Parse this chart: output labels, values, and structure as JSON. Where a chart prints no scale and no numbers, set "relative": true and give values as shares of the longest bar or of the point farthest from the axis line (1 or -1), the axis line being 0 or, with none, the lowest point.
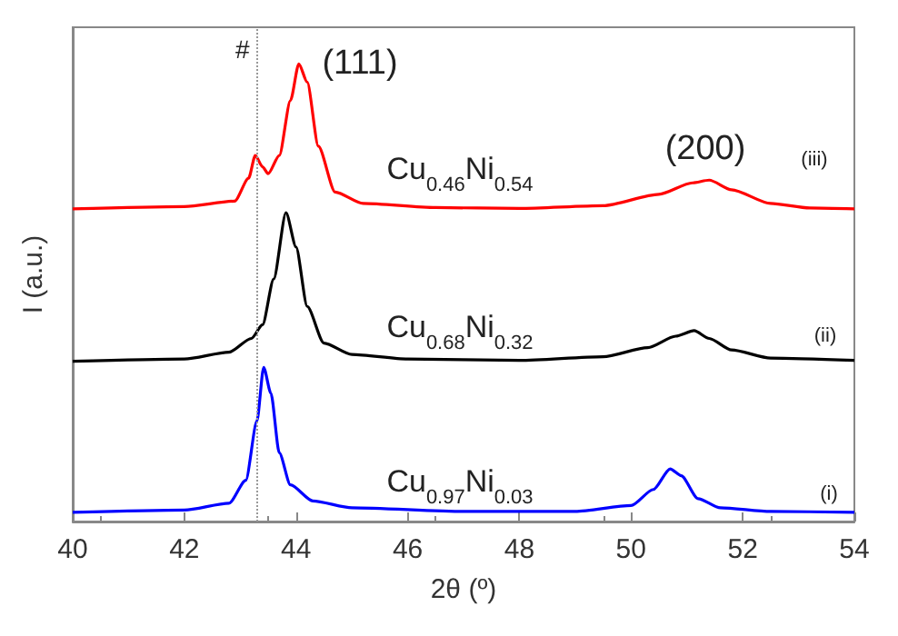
{
  "chart_data": {
    "type": "line",
    "relative": true,
    "xlabel": "2θ (º)",
    "ylabel": "I (a.u.)",
    "xlim": [
      40,
      54
    ],
    "xticks": [
      40,
      42,
      44,
      46,
      48,
      50,
      52,
      54
    ],
    "tick_labels": "x",
    "grid": false,
    "marker": "none",
    "line_style": "solid",
    "ref_lines": [
      {
        "axis": "x",
        "value": 43.3,
        "label": "#",
        "color": "#999999",
        "line_style": "dotted"
      }
    ],
    "annotations": [
      "(111)",
      "(200)",
      "Cu$_{0.46}$Ni$_{0.54}$",
      "Cu$_{0.68}$Ni$_{0.32}$",
      "Cu$_{0.97}$Ni$_{0.03}$",
      "(iii)",
      "(ii)",
      "(i)"
    ],
    "series": [
      {
        "color": "#0000ff",
        "x": [
          40,
          42,
          42.8,
          43.1,
          43.3,
          43.42,
          43.55,
          43.7,
          43.9,
          44.3,
          45,
          47,
          49,
          50,
          50.4,
          50.7,
          50.9,
          51.2,
          51.6,
          52.5,
          54
        ],
        "values": [
          0.02,
          0.025,
          0.04,
          0.09,
          0.22,
          0.337,
          0.28,
          0.15,
          0.08,
          0.045,
          0.03,
          0.022,
          0.022,
          0.035,
          0.07,
          0.115,
          0.1,
          0.05,
          0.03,
          0.022,
          0.02
        ]
      },
      {
        "color": "#000000",
        "x": [
          40,
          42,
          42.8,
          43.2,
          43.4,
          43.6,
          43.82,
          44,
          44.2,
          44.5,
          45,
          46,
          48,
          49.5,
          50.3,
          50.8,
          51.13,
          51.4,
          51.8,
          52.5,
          54
        ],
        "values": [
          0.35,
          0.355,
          0.37,
          0.4,
          0.43,
          0.53,
          0.675,
          0.6,
          0.47,
          0.39,
          0.365,
          0.355,
          0.352,
          0.36,
          0.38,
          0.405,
          0.417,
          0.4,
          0.375,
          0.357,
          0.352
        ]
      },
      {
        "color": "#ff0000",
        "x": [
          40,
          42,
          42.9,
          43.15,
          43.27,
          43.4,
          43.5,
          43.7,
          43.9,
          44.05,
          44.2,
          44.4,
          44.7,
          45.2,
          46.5,
          48,
          49.5,
          50.5,
          51.1,
          51.4,
          51.8,
          52.5,
          53.2,
          54
        ],
        "values": [
          0.683,
          0.688,
          0.7,
          0.75,
          0.8,
          0.775,
          0.76,
          0.8,
          0.92,
          1.0,
          0.96,
          0.82,
          0.72,
          0.695,
          0.686,
          0.684,
          0.69,
          0.715,
          0.74,
          0.746,
          0.725,
          0.695,
          0.685,
          0.683
        ]
      }
    ]
  }
}
